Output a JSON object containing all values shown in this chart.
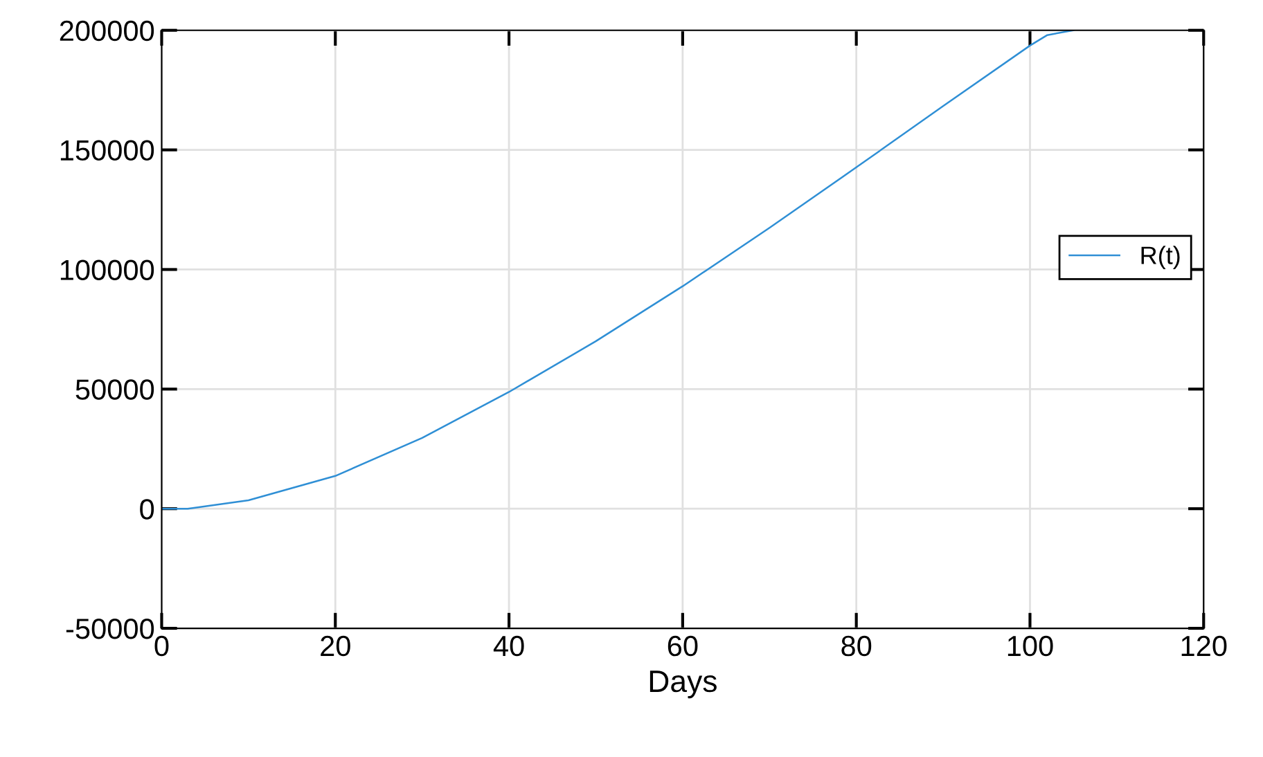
{
  "chart_data": {
    "type": "line",
    "xlabel": "Days",
    "x": [
      0,
      3,
      10,
      20,
      30,
      40,
      50,
      60,
      70,
      80,
      90,
      100,
      102,
      105
    ],
    "series": [
      {
        "name": "R(t)",
        "color": "#2f8fd5",
        "values": [
          0,
          0,
          3500,
          13700,
          29600,
          48800,
          70000,
          93000,
          117400,
          142700,
          168300,
          193600,
          198000,
          200000
        ]
      }
    ],
    "xlim": [
      0,
      120
    ],
    "xticks": [
      0,
      20,
      40,
      60,
      80,
      100,
      120
    ],
    "ylim": [
      -50000,
      200000
    ],
    "yticks": [
      -50000,
      0,
      50000,
      100000,
      150000,
      200000
    ],
    "grid": true,
    "legend": "right"
  }
}
